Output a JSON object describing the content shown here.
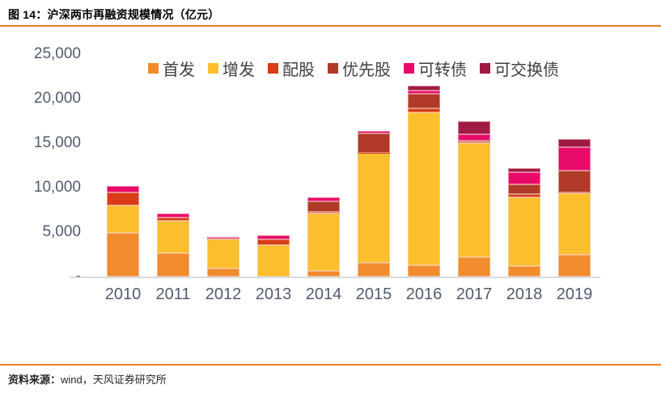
{
  "header": {
    "title": "图 14：沪深两市再融资规模情况（亿元）"
  },
  "footer": {
    "source_label": "资料来源：",
    "source_text": "wind，天风证券研究所"
  },
  "colors": {
    "accent_rule": "#E87E27",
    "axis_line": "#D9D9D9",
    "axis_label_text": "#515C6E",
    "legend_text": "#404040"
  },
  "chart_data": {
    "type": "bar",
    "variant": "stacked",
    "title": "沪深两市再融资规模情况（亿元）",
    "categories": [
      "2010",
      "2011",
      "2012",
      "2013",
      "2014",
      "2015",
      "2016",
      "2017",
      "2018",
      "2019"
    ],
    "series": [
      {
        "name": "首发",
        "color": "#F28B2B",
        "values": [
          4900,
          2650,
          950,
          0,
          650,
          1550,
          1300,
          2150,
          1200,
          2450
        ]
      },
      {
        "name": "增发",
        "color": "#FBBE2D",
        "values": [
          3100,
          3580,
          3200,
          3520,
          6450,
          12340,
          17130,
          12850,
          7680,
          6890
        ]
      },
      {
        "name": "配股",
        "color": "#D93C17",
        "values": [
          1440,
          420,
          120,
          660,
          140,
          40,
          450,
          160,
          360,
          130
        ]
      },
      {
        "name": "优先股",
        "color": "#B03A27",
        "values": [
          0,
          0,
          0,
          0,
          1200,
          2200,
          1660,
          140,
          1150,
          2440
        ]
      },
      {
        "name": "可转债",
        "color": "#E80A69",
        "values": [
          720,
          410,
          230,
          450,
          470,
          270,
          360,
          700,
          1360,
          2660
        ]
      },
      {
        "name": "可交换债",
        "color": "#A01A41",
        "values": [
          0,
          0,
          0,
          0,
          0,
          0,
          550,
          1430,
          450,
          910
        ]
      }
    ],
    "ylim": [
      0,
      25000
    ],
    "ytick_values": [
      25000,
      20000,
      15000,
      10000,
      5000,
      0
    ],
    "ytick_labels": [
      "25,000",
      "20,000",
      "15,000",
      "10,000",
      "5,000",
      "-"
    ],
    "legend_position": "top",
    "grid": false
  }
}
